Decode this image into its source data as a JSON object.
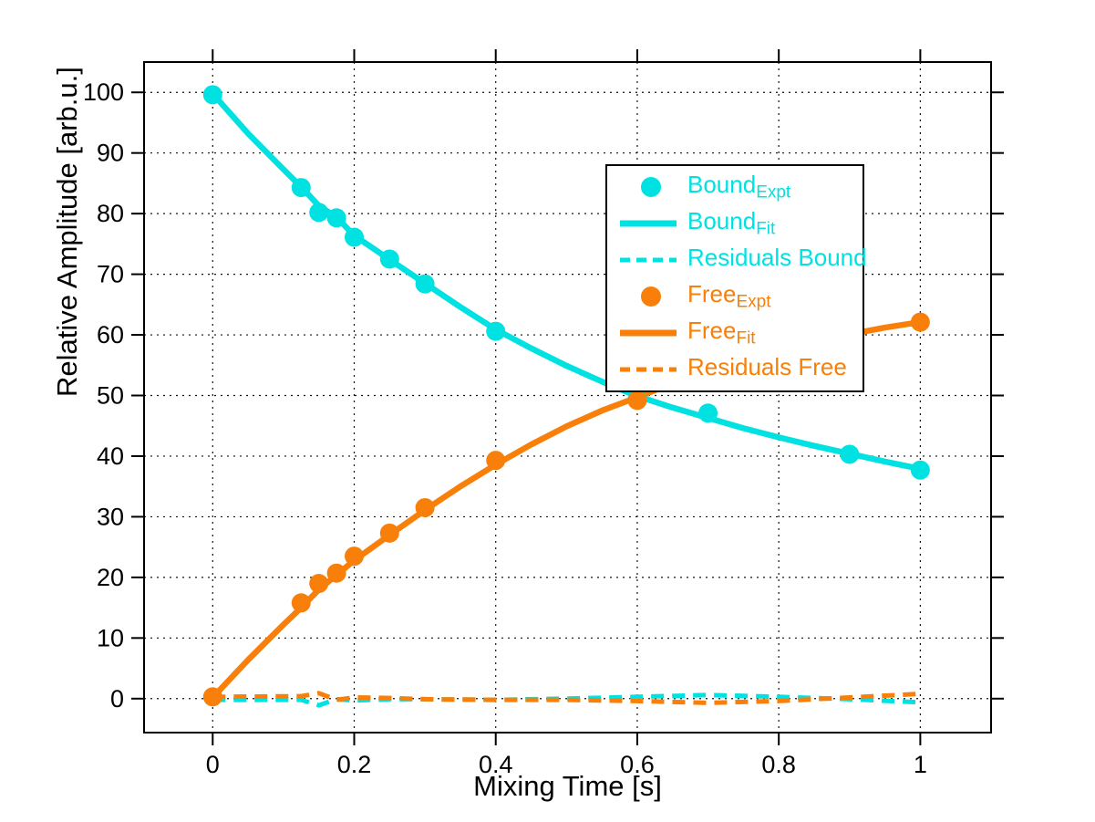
{
  "chart_data": {
    "type": "scatter",
    "title": "",
    "xlabel": "Mixing Time [s]",
    "ylabel": "Relative Amplitude [arb.u.]",
    "xlim": [
      -0.097,
      1.1
    ],
    "ylim": [
      -5.6,
      105.0
    ],
    "x_ticks": [
      0,
      0.2,
      0.4,
      0.6,
      0.8,
      1
    ],
    "x_tick_labels": [
      "0",
      "0.2",
      "0.4",
      "0.6",
      "0.8",
      "1"
    ],
    "y_ticks": [
      0,
      10,
      20,
      30,
      40,
      50,
      60,
      70,
      80,
      90,
      100
    ],
    "y_tick_labels": [
      "0",
      "10",
      "20",
      "30",
      "40",
      "50",
      "60",
      "70",
      "80",
      "90",
      "100"
    ],
    "grid": "dotted",
    "legend_position": "upper-right-inside",
    "colors": {
      "bound": "#00E2E2",
      "free": "#F8800A",
      "axis": "#000000",
      "grid": "#111111",
      "background": "#FFFFFF"
    },
    "series": [
      {
        "name": "Bound_Expt",
        "series_key": "bound",
        "type": "scatter",
        "x": [
          0,
          0.125,
          0.15,
          0.175,
          0.2,
          0.25,
          0.3,
          0.4,
          0.6,
          0.7,
          0.9,
          1.0
        ],
        "y": [
          99.6,
          84.3,
          80.2,
          79.3,
          76.1,
          72.5,
          68.4,
          60.6,
          49.4,
          47.1,
          40.3,
          37.7
        ]
      },
      {
        "name": "Bound_Fit",
        "series_key": "bound",
        "type": "line",
        "x": [
          0,
          0.05,
          0.1,
          0.125,
          0.15,
          0.175,
          0.2,
          0.25,
          0.3,
          0.35,
          0.4,
          0.45,
          0.5,
          0.55,
          0.6,
          0.65,
          0.7,
          0.75,
          0.8,
          0.85,
          0.9,
          0.95,
          1.0
        ],
        "y": [
          99.8,
          93.2,
          87.3,
          84.4,
          81.3,
          79.4,
          76.4,
          72.4,
          68.5,
          64.6,
          60.9,
          57.8,
          54.9,
          52.3,
          49.9,
          48.0,
          46.3,
          44.6,
          43.1,
          41.7,
          40.4,
          39.1,
          37.9
        ]
      },
      {
        "name": "Residuals Bound",
        "series_key": "bound",
        "type": "dashline",
        "x": [
          0,
          0.125,
          0.15,
          0.175,
          0.2,
          0.25,
          0.3,
          0.4,
          0.5,
          0.6,
          0.7,
          0.8,
          0.9,
          1.0
        ],
        "y": [
          -0.2,
          -0.2,
          -1.1,
          -0.1,
          -0.3,
          -0.1,
          -0.1,
          -0.2,
          0.0,
          0.3,
          0.6,
          0.3,
          -0.1,
          -0.6
        ]
      },
      {
        "name": "Free_Expt",
        "series_key": "free",
        "type": "scatter",
        "x": [
          0,
          0.125,
          0.15,
          0.175,
          0.2,
          0.25,
          0.3,
          0.4,
          0.6,
          0.7,
          0.9,
          1.0
        ],
        "y": [
          0.3,
          15.8,
          19.0,
          20.7,
          23.5,
          27.3,
          31.5,
          39.3,
          49.2,
          53.5,
          60.3,
          62.1
        ]
      },
      {
        "name": "Free_Fit",
        "series_key": "free",
        "type": "line",
        "x": [
          0,
          0.05,
          0.1,
          0.125,
          0.15,
          0.175,
          0.2,
          0.25,
          0.3,
          0.35,
          0.4,
          0.45,
          0.5,
          0.55,
          0.6,
          0.65,
          0.7,
          0.75,
          0.8,
          0.85,
          0.9,
          0.95,
          1.0
        ],
        "y": [
          0.2,
          6.4,
          12.2,
          15.0,
          18.0,
          20.4,
          22.8,
          27.0,
          31.1,
          35.0,
          38.6,
          41.9,
          44.9,
          47.5,
          49.7,
          52.0,
          54.1,
          55.9,
          57.5,
          58.9,
          60.1,
          61.2,
          62.1
        ]
      },
      {
        "name": "Residuals Free",
        "series_key": "free",
        "type": "dashline",
        "x": [
          0,
          0.125,
          0.15,
          0.175,
          0.2,
          0.25,
          0.3,
          0.4,
          0.5,
          0.6,
          0.7,
          0.8,
          0.9,
          1.0
        ],
        "y": [
          0.3,
          0.4,
          0.9,
          -0.2,
          0.2,
          0.1,
          -0.1,
          -0.2,
          -0.2,
          -0.4,
          -0.7,
          -0.4,
          0.2,
          0.8
        ]
      }
    ],
    "legend": {
      "entries": [
        {
          "label": "Bound",
          "sub": "Expt",
          "symbol": "marker",
          "series_key": "bound"
        },
        {
          "label": "Bound",
          "sub": "Fit",
          "symbol": "line",
          "series_key": "bound"
        },
        {
          "label": "Residuals Bound",
          "sub": "",
          "symbol": "dash",
          "series_key": "bound"
        },
        {
          "label": "Free",
          "sub": "Expt",
          "symbol": "marker",
          "series_key": "free"
        },
        {
          "label": "Free",
          "sub": "Fit",
          "symbol": "line",
          "series_key": "free"
        },
        {
          "label": "Residuals Free",
          "sub": "",
          "symbol": "dash",
          "series_key": "free"
        }
      ]
    }
  }
}
